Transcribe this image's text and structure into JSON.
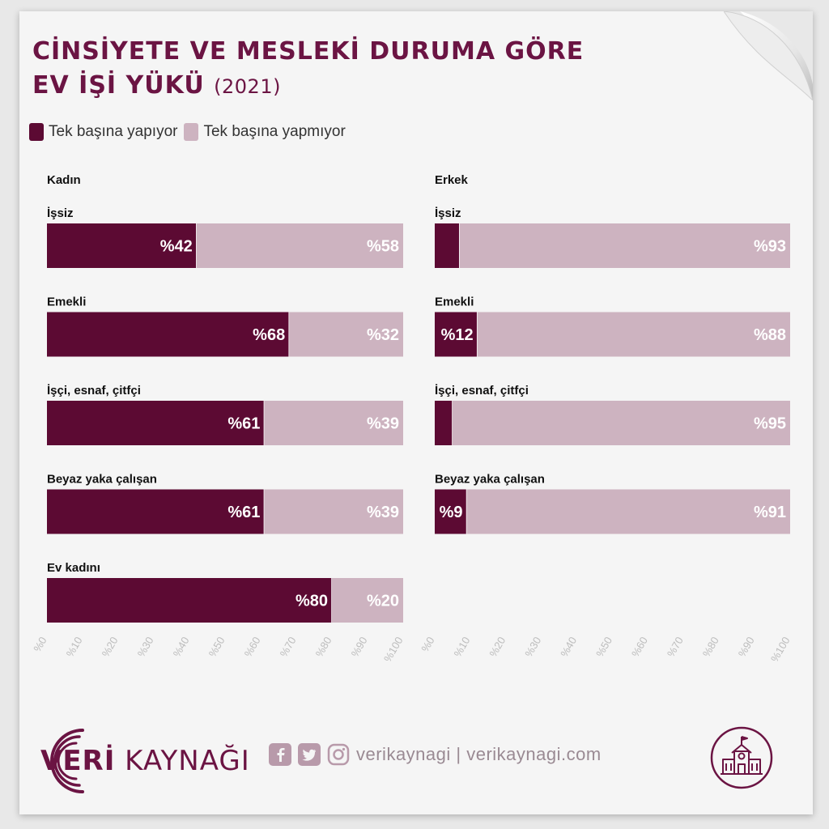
{
  "title": {
    "line1": "CİNSİYETE VE MESLEKİ DURUMA GÖRE",
    "line2": "EV İŞİ YÜKÜ",
    "year": "(2021)"
  },
  "legend": {
    "items": [
      {
        "label": "Tek başına yapıyor",
        "color": "#5c0a33"
      },
      {
        "label": "Tek başına yapmıyor",
        "color": "#cdb3c0"
      }
    ]
  },
  "colors": {
    "accent": "#6b1443",
    "bar_primary": "#5c0a33",
    "bar_secondary": "#cdb3c0",
    "axis_text": "#bdbdbd"
  },
  "chart_data": [
    {
      "type": "bar",
      "orientation": "horizontal-stacked",
      "panel_title": "Kadın",
      "categories": [
        "İşsiz",
        "Emekli",
        "İşçi, esnaf, çitfçi",
        "Beyaz yaka çalışan",
        "Ev kadını"
      ],
      "series": [
        {
          "name": "Tek başına yapıyor",
          "values": [
            42,
            68,
            61,
            61,
            80
          ],
          "labels": [
            "%42",
            "%68",
            "%61",
            "%61",
            "%80"
          ]
        },
        {
          "name": "Tek başına yapmıyor",
          "values": [
            58,
            32,
            39,
            39,
            20
          ],
          "labels": [
            "%58",
            "%32",
            "%39",
            "%39",
            "%20"
          ]
        }
      ],
      "xlim": [
        0,
        100
      ],
      "xticks": [
        "%0",
        "%10",
        "%20",
        "%30",
        "%40",
        "%50",
        "%60",
        "%70",
        "%80",
        "%90",
        "%100"
      ],
      "grid": false
    },
    {
      "type": "bar",
      "orientation": "horizontal-stacked",
      "panel_title": "Erkek",
      "categories": [
        "İşsiz",
        "Emekli",
        "İşçi, esnaf, çitfçi",
        "Beyaz yaka çalışan"
      ],
      "series": [
        {
          "name": "Tek başına yapıyor",
          "values": [
            7,
            12,
            5,
            9
          ],
          "labels": [
            "",
            "%12",
            "",
            "%9"
          ]
        },
        {
          "name": "Tek başına yapmıyor",
          "values": [
            93,
            88,
            95,
            91
          ],
          "labels": [
            "%93",
            "%88",
            "%95",
            "%91"
          ]
        }
      ],
      "xlim": [
        0,
        100
      ],
      "xticks": [
        "%0",
        "%10",
        "%20",
        "%30",
        "%40",
        "%50",
        "%60",
        "%70",
        "%80",
        "%90",
        "%100"
      ],
      "grid": false
    }
  ],
  "footer": {
    "brand_bold": "VERİ",
    "brand_regular": " KAYNAĞI",
    "social_text": "verikaynagi | verikaynagi.com",
    "icons": [
      "facebook-icon",
      "twitter-icon",
      "instagram-icon",
      "school-building-icon"
    ]
  }
}
